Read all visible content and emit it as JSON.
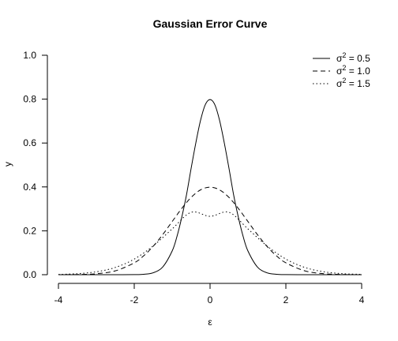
{
  "chart_data": {
    "type": "line",
    "title": "Gaussian Error Curve",
    "xlabel": "ε",
    "ylabel": "y",
    "xlim": [
      -4,
      4
    ],
    "ylim": [
      0,
      1
    ],
    "xticks": [
      -4,
      -2,
      0,
      2,
      4
    ],
    "yticks": [
      0.0,
      0.2,
      0.4,
      0.6,
      0.8,
      1.0
    ],
    "ytick_labels": [
      "0.0",
      "0.2",
      "0.4",
      "0.6",
      "0.8",
      "1.0"
    ],
    "xtick_labels": [
      "-4",
      "-2",
      "0",
      "2",
      "4"
    ],
    "grid": false,
    "legend_position": "top-right",
    "series": [
      {
        "name_symbol": "σ",
        "name_exp": "2",
        "name_rest": " = 0.5",
        "line_style": "solid",
        "x": [
          -4.0,
          -3.5,
          -3.0,
          -2.5,
          -2.0,
          -1.75,
          -1.5,
          -1.25,
          -1.0,
          -0.875,
          -0.75,
          -0.625,
          -0.5,
          -0.375,
          -0.25,
          -0.125,
          0.0,
          0.125,
          0.25,
          0.375,
          0.5,
          0.625,
          0.75,
          0.875,
          1.0,
          1.25,
          1.5,
          1.75,
          2.0,
          2.5,
          3.0,
          3.5,
          4.0
        ],
        "y": [
          0.0,
          0.0,
          0.0,
          0.0,
          0.0003,
          0.0018,
          0.0088,
          0.035,
          0.108,
          0.173,
          0.259,
          0.361,
          0.484,
          0.601,
          0.704,
          0.775,
          0.798,
          0.775,
          0.704,
          0.601,
          0.484,
          0.361,
          0.259,
          0.173,
          0.108,
          0.035,
          0.0088,
          0.0018,
          0.0003,
          0.0,
          0.0,
          0.0,
          0.0
        ]
      },
      {
        "name_symbol": "σ",
        "name_exp": "2",
        "name_rest": " = 1.0",
        "line_style": "dashed",
        "x": [
          -4.0,
          -3.5,
          -3.0,
          -2.5,
          -2.0,
          -1.75,
          -1.5,
          -1.25,
          -1.0,
          -0.75,
          -0.5,
          -0.25,
          0.0,
          0.25,
          0.5,
          0.75,
          1.0,
          1.25,
          1.5,
          1.75,
          2.0,
          2.5,
          3.0,
          3.5,
          4.0
        ],
        "y": [
          0.0001,
          0.0009,
          0.0044,
          0.0175,
          0.054,
          0.0863,
          0.1295,
          0.1826,
          0.242,
          0.3011,
          0.3521,
          0.3867,
          0.3989,
          0.3867,
          0.3521,
          0.3011,
          0.242,
          0.1826,
          0.1295,
          0.0863,
          0.054,
          0.0175,
          0.0044,
          0.0009,
          0.0001
        ]
      },
      {
        "name_symbol": "σ",
        "name_exp": "2",
        "name_rest": " = 1.5",
        "line_style": "dotted",
        "x": [
          -4.0,
          -3.5,
          -3.0,
          -2.5,
          -2.0,
          -1.5,
          -1.0,
          -0.5,
          0.0,
          0.5,
          1.0,
          1.5,
          2.0,
          2.5,
          3.0,
          3.5,
          4.0
        ],
        "y": [
          0.0014,
          0.0046,
          0.0133,
          0.033,
          0.0711,
          0.1313,
          0.2085,
          0.2844,
          0.266,
          0.2844,
          0.2085,
          0.1313,
          0.0711,
          0.033,
          0.0133,
          0.0046,
          0.0014
        ]
      }
    ]
  }
}
